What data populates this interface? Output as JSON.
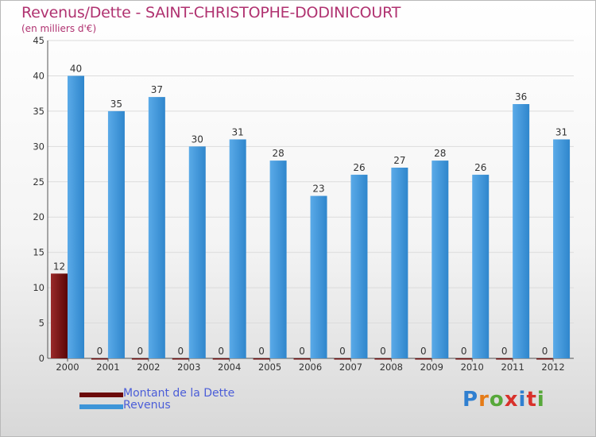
{
  "header": {
    "title": "Revenus/Dette - SAINT-CHRISTOPHE-DODINICOURT",
    "subtitle": "(en milliers d'€)"
  },
  "legend": {
    "items": [
      {
        "label": "Montant de la Dette",
        "color": "#6b0a0a"
      },
      {
        "label": "Revenus",
        "color": "#3d95d8"
      }
    ]
  },
  "logo": {
    "letters": [
      "P",
      "r",
      "o",
      "x",
      "i",
      "t",
      "i"
    ],
    "colors": [
      "#2f7fd0",
      "#e57b17",
      "#57a83a",
      "#d8312b",
      "#2f7fd0",
      "#d8312b",
      "#57a83a"
    ]
  },
  "chart_data": {
    "type": "bar",
    "categories": [
      "2000",
      "2001",
      "2002",
      "2003",
      "2004",
      "2005",
      "2006",
      "2007",
      "2008",
      "2009",
      "2010",
      "2011",
      "2012"
    ],
    "series": [
      {
        "name": "Montant de la Dette",
        "values": [
          12,
          0,
          0,
          0,
          0,
          0,
          0,
          0,
          0,
          0,
          0,
          0,
          0
        ],
        "color": "#6b0a0a"
      },
      {
        "name": "Revenus",
        "values": [
          40,
          35,
          37,
          30,
          31,
          28,
          23,
          26,
          27,
          28,
          26,
          36,
          31
        ],
        "color": "#3d95d8"
      }
    ],
    "yticks": [
      0,
      5,
      10,
      15,
      20,
      25,
      30,
      35,
      40,
      45
    ],
    "ylim": [
      0,
      45
    ],
    "grid": true,
    "title": "Revenus/Dette - SAINT-CHRISTOPHE-DODINICOURT",
    "ylabel": "(en milliers d'€)",
    "xlabel": ""
  }
}
